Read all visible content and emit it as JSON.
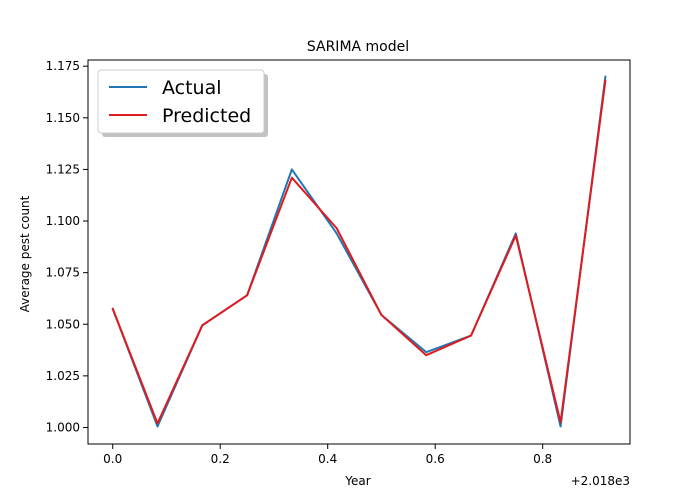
{
  "chart_data": {
    "type": "line",
    "title": "SARIMA model",
    "xlabel": "Year",
    "ylabel": "Average pest count",
    "x_offset_label": "+2.018e3",
    "x_ticks": [
      "0.0",
      "0.2",
      "0.4",
      "0.6",
      "0.8"
    ],
    "y_ticks": [
      "1.000",
      "1.025",
      "1.050",
      "1.075",
      "1.100",
      "1.125",
      "1.150",
      "1.175"
    ],
    "xlim": [
      -0.046,
      0.9625
    ],
    "ylim": [
      0.992,
      1.178
    ],
    "grid": false,
    "legend": {
      "placement": "top-left"
    },
    "x": [
      0,
      0.0833,
      0.1667,
      0.25,
      0.3333,
      0.4167,
      0.5,
      0.5833,
      0.6667,
      0.75,
      0.8333,
      0.9167
    ],
    "series": [
      {
        "name": "Actual",
        "color": "#1f77b4",
        "values": [
          1.0575,
          1.0005,
          1.0495,
          1.064,
          1.125,
          1.094,
          1.0545,
          1.0365,
          1.0445,
          1.094,
          1.0005,
          1.17
        ]
      },
      {
        "name": "Predicted",
        "color": "#e31a1c",
        "values": [
          1.0575,
          1.002,
          1.0495,
          1.064,
          1.121,
          1.0965,
          1.0545,
          1.035,
          1.0445,
          1.093,
          1.0025,
          1.168
        ]
      }
    ]
  }
}
